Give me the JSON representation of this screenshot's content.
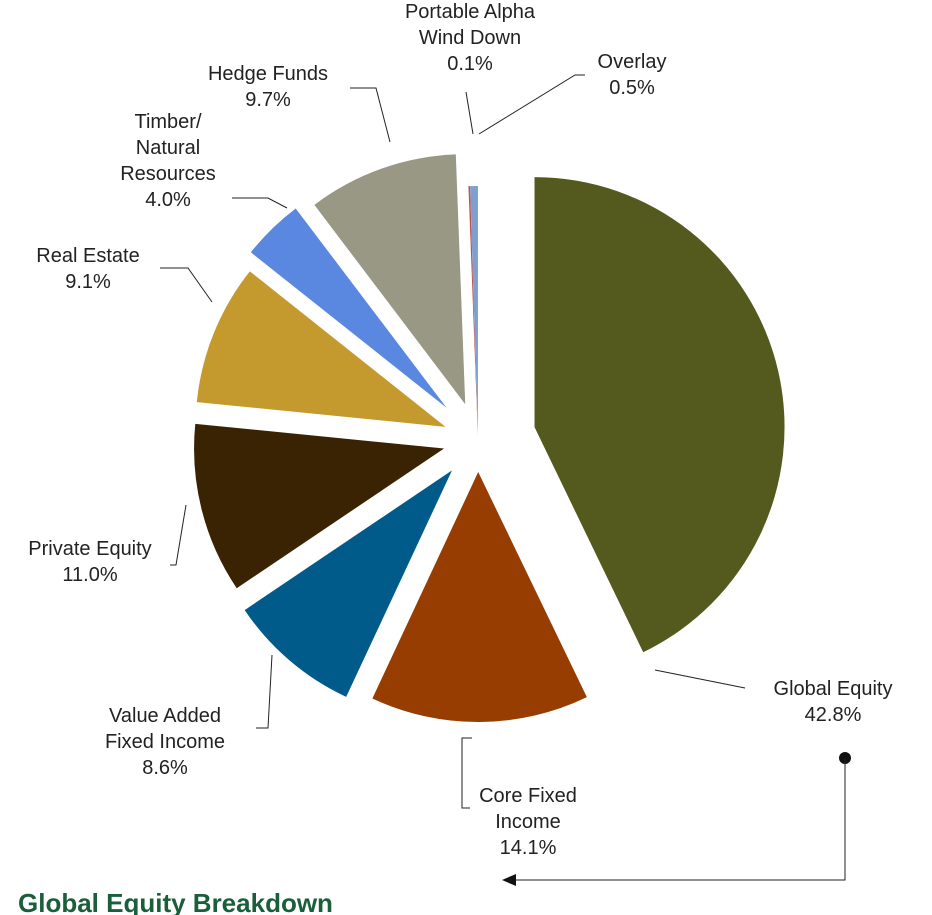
{
  "chart_data": {
    "type": "pie",
    "categories": [
      "Global Equity",
      "Core Fixed\nIncome",
      "Value Added\nFixed Income",
      "Private Equity",
      "Real Estate",
      "Timber/\nNatural\nResources",
      "Hedge Funds",
      "Portable Alpha\nWind Down",
      "Overlay"
    ],
    "values": [
      42.8,
      14.1,
      8.6,
      11.0,
      9.1,
      4.0,
      9.7,
      0.1,
      0.5
    ],
    "value_labels": [
      "42.8%",
      "14.1%",
      "8.6%",
      "11.0%",
      "9.1%",
      "4.0%",
      "9.7%",
      "0.1%",
      "0.5%"
    ],
    "colors": [
      "#545a1e",
      "#973d02",
      "#005a8a",
      "#3a2303",
      "#c4992e",
      "#5a87e0",
      "#989885",
      "#c0504d",
      "#7f9fcf"
    ],
    "annotation": "Global Equity Breakdown"
  }
}
